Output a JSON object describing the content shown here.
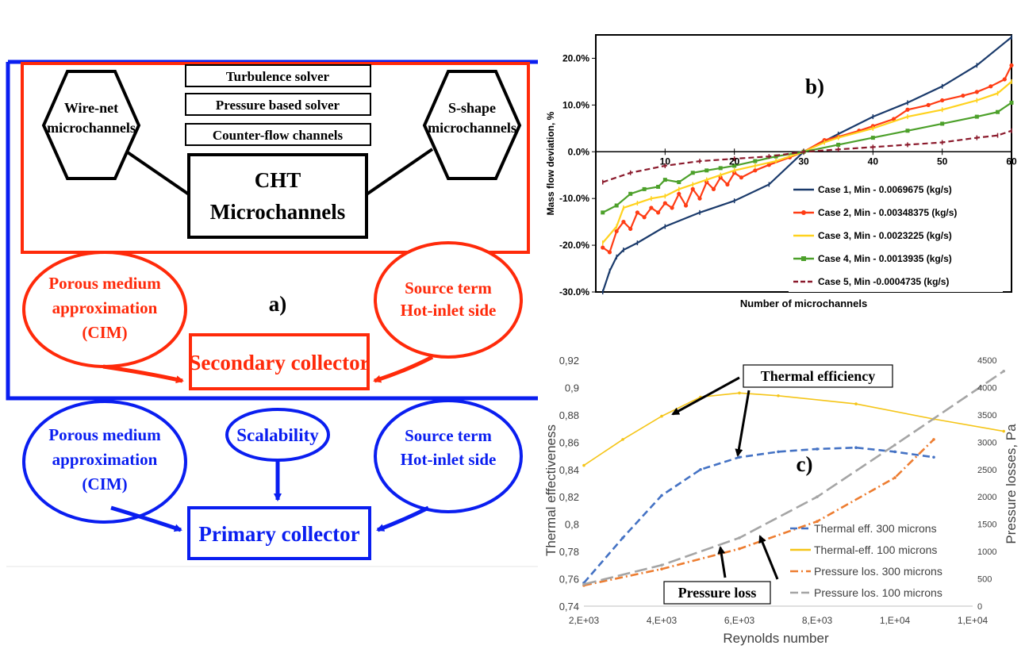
{
  "panel_a": {
    "label": "a)",
    "top_boxes": [
      "Turbulence solver",
      "Pressure based solver",
      "Counter-flow channels"
    ],
    "hex_left": [
      "Wire-net",
      "microchannels"
    ],
    "hex_right": [
      "S-shape",
      "microchannels"
    ],
    "cht": [
      "CHT",
      "Microchannels"
    ],
    "red_left": [
      "Porous medium",
      "approximation",
      "(CIM)"
    ],
    "red_right": [
      "Source term",
      "Hot-inlet side"
    ],
    "secondary": "Secondary collector",
    "blue_left": [
      "Porous medium",
      "approximation",
      "(CIM)"
    ],
    "blue_mid": "Scalability",
    "blue_right": [
      "Source term",
      "Hot-inlet side"
    ],
    "primary": "Primary collector",
    "colors": {
      "red": "#ff2a0a",
      "blue": "#0a1ef0"
    }
  },
  "panel_b": {
    "label": "b)",
    "chart_data": {
      "type": "line",
      "xlabel": "Number of microchannels",
      "ylabel": "Mass flow deviation, %",
      "xlim": [
        0,
        60
      ],
      "ylim": [
        -30,
        25
      ],
      "xticks": [
        "10",
        "20",
        "30",
        "40",
        "50",
        "60"
      ],
      "yticks": [
        "20.0%",
        "10.0%",
        "0.0%",
        "-10.0%",
        "-20.0%",
        "-30.0%"
      ],
      "legend": "center-right",
      "series": [
        {
          "name": "Case 1, Min - 0.0069675 (kg/s)",
          "color": "#1a3a6b",
          "marker": "dash",
          "points": [
            [
              1,
              -30
            ],
            [
              2,
              -25.5
            ],
            [
              3,
              -22.5
            ],
            [
              4,
              -21
            ],
            [
              6,
              -19.5
            ],
            [
              10,
              -16
            ],
            [
              15,
              -13
            ],
            [
              20,
              -10.5
            ],
            [
              25,
              -7
            ],
            [
              30,
              0
            ],
            [
              35,
              3.8
            ],
            [
              40,
              7.5
            ],
            [
              45,
              10.5
            ],
            [
              50,
              14
            ],
            [
              55,
              18.5
            ],
            [
              60,
              24.5
            ]
          ]
        },
        {
          "name": "Case 2, Min - 0.00348375 (kg/s)",
          "color": "#ff3c14",
          "marker": "circle",
          "points": [
            [
              1,
              -20.5
            ],
            [
              2,
              -21.5
            ],
            [
              3,
              -17
            ],
            [
              4,
              -15
            ],
            [
              5,
              -16.5
            ],
            [
              6,
              -13
            ],
            [
              7,
              -14
            ],
            [
              8,
              -12
            ],
            [
              9,
              -13
            ],
            [
              10,
              -11
            ],
            [
              11,
              -12
            ],
            [
              12,
              -9
            ],
            [
              13,
              -11.5
            ],
            [
              14,
              -8
            ],
            [
              15,
              -10
            ],
            [
              16,
              -6.5
            ],
            [
              17,
              -8
            ],
            [
              18,
              -5.5
            ],
            [
              19,
              -7
            ],
            [
              20,
              -4.5
            ],
            [
              21,
              -5.5
            ],
            [
              23,
              -4
            ],
            [
              25,
              -2.8
            ],
            [
              28,
              -1.2
            ],
            [
              30,
              0
            ],
            [
              33,
              2.5
            ],
            [
              35,
              3.2
            ],
            [
              38,
              4.5
            ],
            [
              40,
              5.5
            ],
            [
              43,
              7
            ],
            [
              45,
              9
            ],
            [
              48,
              10
            ],
            [
              50,
              11
            ],
            [
              53,
              12
            ],
            [
              55,
              12.8
            ],
            [
              57,
              14
            ],
            [
              59,
              15.5
            ],
            [
              60,
              18.5
            ]
          ]
        },
        {
          "name": "Case 3, Min - 0.0023225 (kg/s)",
          "color": "#ffd21e",
          "marker": "dash",
          "points": [
            [
              1,
              -19.5
            ],
            [
              3,
              -16
            ],
            [
              4,
              -12
            ],
            [
              6,
              -11
            ],
            [
              8,
              -10
            ],
            [
              10,
              -9.5
            ],
            [
              12,
              -8
            ],
            [
              14,
              -7
            ],
            [
              16,
              -6
            ],
            [
              18,
              -5
            ],
            [
              20,
              -4
            ],
            [
              23,
              -3
            ],
            [
              26,
              -2
            ],
            [
              30,
              0
            ],
            [
              33,
              2
            ],
            [
              35,
              3
            ],
            [
              40,
              5
            ],
            [
              45,
              7.5
            ],
            [
              50,
              9
            ],
            [
              55,
              11
            ],
            [
              58,
              12.5
            ],
            [
              60,
              15
            ]
          ]
        },
        {
          "name": "Case 4, Min - 0.0013935 (kg/s)",
          "color": "#4ca02a",
          "marker": "square",
          "points": [
            [
              1,
              -13
            ],
            [
              3,
              -11.5
            ],
            [
              5,
              -9
            ],
            [
              7,
              -8
            ],
            [
              9,
              -7.5
            ],
            [
              10,
              -6
            ],
            [
              12,
              -6.5
            ],
            [
              14,
              -4.5
            ],
            [
              16,
              -4
            ],
            [
              18,
              -3.5
            ],
            [
              20,
              -3
            ],
            [
              23,
              -2
            ],
            [
              26,
              -1
            ],
            [
              30,
              0
            ],
            [
              35,
              1.5
            ],
            [
              40,
              3
            ],
            [
              45,
              4.5
            ],
            [
              50,
              6
            ],
            [
              55,
              7.5
            ],
            [
              58,
              8.5
            ],
            [
              60,
              10.5
            ]
          ]
        },
        {
          "name": "Case 5, Min -0.0004735 (kg/s)",
          "color": "#8b1a2c",
          "marker": "dash",
          "points": [
            [
              1,
              -6.5
            ],
            [
              5,
              -4.5
            ],
            [
              10,
              -3
            ],
            [
              15,
              -2
            ],
            [
              20,
              -1.5
            ],
            [
              25,
              -1
            ],
            [
              30,
              0
            ],
            [
              35,
              0.5
            ],
            [
              40,
              1
            ],
            [
              45,
              1.5
            ],
            [
              50,
              2
            ],
            [
              55,
              3
            ],
            [
              58,
              3.5
            ],
            [
              60,
              4.5
            ]
          ]
        }
      ]
    }
  },
  "panel_c": {
    "label": "c)",
    "annot_thermal": "Thermal efficiency",
    "annot_pressure": "Pressure loss",
    "chart_data": {
      "type": "line",
      "xlabel": "Reynolds number",
      "ylabel": "Thermal effectiveness",
      "y2label": "Pressure losses, Pa",
      "xlim": [
        2000,
        12000
      ],
      "ylim": [
        0.74,
        0.92
      ],
      "y2lim": [
        0,
        4500
      ],
      "xticks": [
        "2,E+03",
        "4,E+03",
        "6,E+03",
        "8,E+03",
        "1,E+04",
        "1,E+04"
      ],
      "yticks": [
        "0,92",
        "0,9",
        "0,88",
        "0,86",
        "0,84",
        "0,82",
        "0,8",
        "0,78",
        "0,76",
        "0,74"
      ],
      "y2ticks": [
        "4500",
        "4000",
        "3500",
        "3000",
        "2500",
        "2000",
        "1500",
        "1000",
        "500",
        "0"
      ],
      "legend": "bottom-right",
      "series": [
        {
          "name": "Thermal eff. 300 microns",
          "axis": "left",
          "color": "#4472c4",
          "dash": "9,5",
          "points": [
            [
              2000,
              0.757
            ],
            [
              3000,
              0.79
            ],
            [
              4000,
              0.821
            ],
            [
              5000,
              0.84
            ],
            [
              6000,
              0.849
            ],
            [
              7000,
              0.853
            ],
            [
              8000,
              0.855
            ],
            [
              9000,
              0.856
            ],
            [
              10000,
              0.853
            ],
            [
              11000,
              0.849
            ]
          ]
        },
        {
          "name": "Thermal-eff. 100 microns",
          "axis": "left",
          "color": "#f5c518",
          "dash": "",
          "points": [
            [
              2000,
              0.843
            ],
            [
              3000,
              0.862
            ],
            [
              4000,
              0.879
            ],
            [
              5000,
              0.893
            ],
            [
              6000,
              0.896
            ],
            [
              7000,
              0.894
            ],
            [
              9000,
              0.888
            ],
            [
              11000,
              0.877
            ],
            [
              12800,
              0.868
            ]
          ]
        },
        {
          "name": "Pressure los. 300 microns",
          "axis": "right",
          "color": "#ed7d31",
          "dash": "10,4,2,4",
          "points": [
            [
              2000,
              380
            ],
            [
              4000,
              680
            ],
            [
              6000,
              1050
            ],
            [
              8000,
              1550
            ],
            [
              10000,
              2350
            ],
            [
              11000,
              3050
            ]
          ]
        },
        {
          "name": "Pressure los. 100 microns",
          "axis": "right",
          "color": "#a5a5a5",
          "dash": "16,6",
          "points": [
            [
              2000,
              400
            ],
            [
              4000,
              750
            ],
            [
              6000,
              1250
            ],
            [
              8000,
              2000
            ],
            [
              10000,
              2950
            ],
            [
              12800,
              4300
            ]
          ]
        }
      ]
    }
  }
}
